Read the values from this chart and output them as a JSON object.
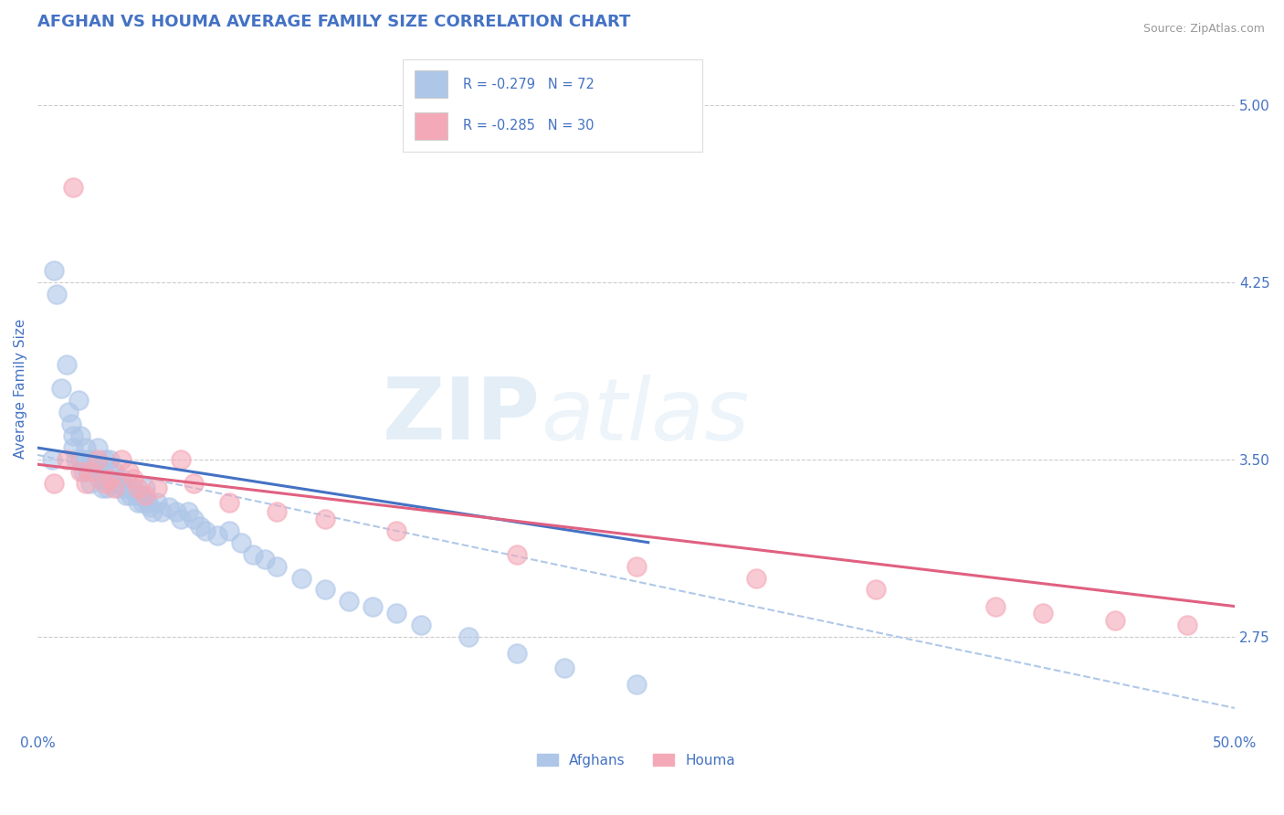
{
  "title": "AFGHAN VS HOUMA AVERAGE FAMILY SIZE CORRELATION CHART",
  "source_text": "Source: ZipAtlas.com",
  "ylabel": "Average Family Size",
  "xlim": [
    0.0,
    0.5
  ],
  "ylim": [
    2.35,
    5.25
  ],
  "yticks": [
    2.75,
    3.5,
    4.25,
    5.0
  ],
  "xticks": [
    0.0,
    0.5
  ],
  "xticklabels": [
    "0.0%",
    "50.0%"
  ],
  "yticklabels": [
    "2.75",
    "3.50",
    "4.25",
    "5.00"
  ],
  "legend_labels": [
    "Afghans",
    "Houma"
  ],
  "afghan_color": "#aec6e8",
  "afghan_line_color": "#4472c4",
  "houma_color": "#f4a9b8",
  "houma_line_color": "#e06080",
  "dashed_line_color": "#b0c8e8",
  "watermark_zip": "ZIP",
  "watermark_atlas": "atlas",
  "title_color": "#4472c4",
  "title_fontsize": 13,
  "axis_label_color": "#4472c4",
  "tick_label_color": "#4472c4",
  "grid_color": "#cccccc",
  "background_color": "#ffffff",
  "afghan_scatter_x": [
    0.006,
    0.007,
    0.008,
    0.01,
    0.012,
    0.013,
    0.014,
    0.015,
    0.015,
    0.016,
    0.017,
    0.018,
    0.018,
    0.019,
    0.02,
    0.02,
    0.021,
    0.022,
    0.023,
    0.024,
    0.025,
    0.025,
    0.026,
    0.027,
    0.028,
    0.028,
    0.029,
    0.03,
    0.03,
    0.031,
    0.032,
    0.033,
    0.034,
    0.035,
    0.036,
    0.037,
    0.038,
    0.039,
    0.04,
    0.041,
    0.042,
    0.043,
    0.044,
    0.045,
    0.046,
    0.047,
    0.048,
    0.05,
    0.052,
    0.055,
    0.058,
    0.06,
    0.063,
    0.065,
    0.068,
    0.07,
    0.075,
    0.08,
    0.085,
    0.09,
    0.095,
    0.1,
    0.11,
    0.12,
    0.13,
    0.14,
    0.15,
    0.16,
    0.18,
    0.2,
    0.22,
    0.25
  ],
  "afghan_scatter_y": [
    3.5,
    4.3,
    4.2,
    3.8,
    3.9,
    3.7,
    3.65,
    3.6,
    3.55,
    3.5,
    3.75,
    3.6,
    3.5,
    3.45,
    3.55,
    3.5,
    3.45,
    3.4,
    3.5,
    3.48,
    3.55,
    3.45,
    3.42,
    3.38,
    3.5,
    3.42,
    3.38,
    3.5,
    3.45,
    3.4,
    3.45,
    3.4,
    3.38,
    3.42,
    3.38,
    3.35,
    3.38,
    3.35,
    3.38,
    3.35,
    3.32,
    3.35,
    3.32,
    3.38,
    3.32,
    3.3,
    3.28,
    3.32,
    3.28,
    3.3,
    3.28,
    3.25,
    3.28,
    3.25,
    3.22,
    3.2,
    3.18,
    3.2,
    3.15,
    3.1,
    3.08,
    3.05,
    3.0,
    2.95,
    2.9,
    2.88,
    2.85,
    2.8,
    2.75,
    2.68,
    2.62,
    2.55
  ],
  "houma_scatter_x": [
    0.007,
    0.012,
    0.015,
    0.018,
    0.02,
    0.022,
    0.025,
    0.028,
    0.03,
    0.032,
    0.035,
    0.038,
    0.04,
    0.042,
    0.045,
    0.05,
    0.06,
    0.065,
    0.08,
    0.1,
    0.12,
    0.15,
    0.2,
    0.25,
    0.3,
    0.35,
    0.4,
    0.42,
    0.45,
    0.48
  ],
  "houma_scatter_y": [
    3.4,
    3.5,
    4.65,
    3.45,
    3.4,
    3.45,
    3.5,
    3.4,
    3.42,
    3.38,
    3.5,
    3.45,
    3.42,
    3.38,
    3.35,
    3.38,
    3.5,
    3.4,
    3.32,
    3.28,
    3.25,
    3.2,
    3.1,
    3.05,
    3.0,
    2.95,
    2.88,
    2.85,
    2.82,
    2.8
  ],
  "afghan_trend_x": [
    0.0,
    0.255
  ],
  "afghan_trend_y": [
    3.55,
    3.15
  ],
  "houma_trend_x": [
    0.0,
    0.5
  ],
  "houma_trend_y": [
    3.48,
    2.88
  ],
  "dashed_trend_x": [
    0.0,
    0.5
  ],
  "dashed_trend_y": [
    3.52,
    2.45
  ]
}
